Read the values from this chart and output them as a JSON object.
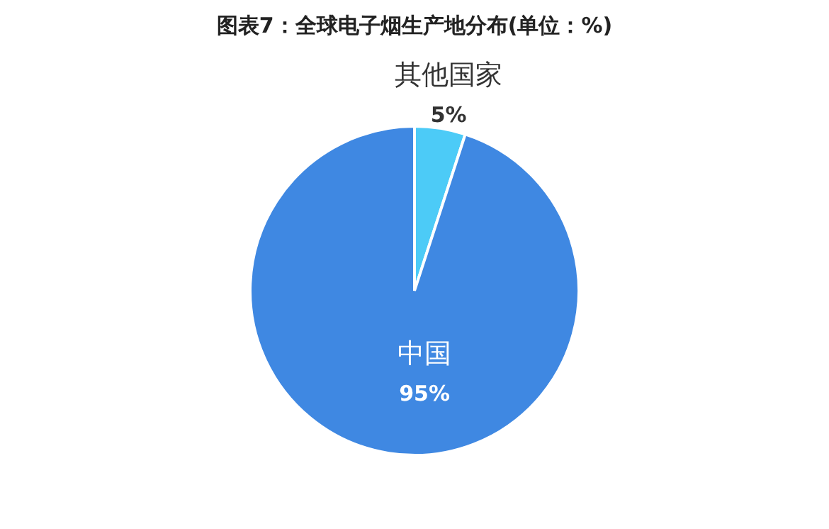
{
  "chart_data": {
    "type": "pie",
    "title": "图表7：全球电子烟生产地分布(单位：%)",
    "categories": [
      "其他国家",
      "中国"
    ],
    "values": [
      5,
      95
    ],
    "colors": [
      "#4ccbf7",
      "#3f88e2"
    ],
    "value_labels": [
      "5%",
      "95%"
    ]
  }
}
